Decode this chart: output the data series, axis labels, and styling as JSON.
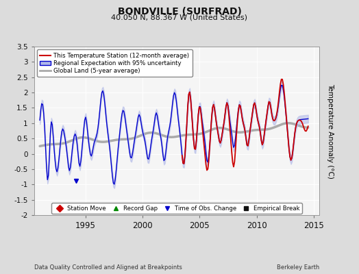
{
  "title": "BONDVILLE (SURFRAD)",
  "subtitle": "40.050 N, 88.367 W (United States)",
  "ylabel": "Temperature Anomaly (°C)",
  "xlabel_note": "Data Quality Controlled and Aligned at Breakpoints",
  "xlabel_note_right": "Berkeley Earth",
  "ylim": [
    -2.0,
    3.5
  ],
  "yticks": [
    -2,
    -1.5,
    -1,
    -0.5,
    0,
    0.5,
    1,
    1.5,
    2,
    2.5,
    3,
    3.5
  ],
  "xlim": [
    1990.5,
    2015.5
  ],
  "xticks": [
    1995,
    2000,
    2005,
    2010,
    2015
  ],
  "bg_color": "#dcdcdc",
  "plot_bg": "#f5f5f5",
  "grid_color": "#ffffff",
  "red_color": "#cc0000",
  "blue_color": "#0000cc",
  "blue_fill": "#b0b8e8",
  "gray_color": "#aaaaaa",
  "legend_entries": [
    "This Temperature Station (12-month average)",
    "Regional Expectation with 95% uncertainty",
    "Global Land (5-year average)"
  ],
  "legend_marker_entries": [
    {
      "label": "Station Move",
      "color": "#cc0000",
      "marker": "D"
    },
    {
      "label": "Record Gap",
      "color": "#008800",
      "marker": "^"
    },
    {
      "label": "Time of Obs. Change",
      "color": "#0000cc",
      "marker": "v"
    },
    {
      "label": "Empirical Break",
      "color": "#111111",
      "marker": "s"
    }
  ],
  "blue_marker_x": 1994.2,
  "blue_marker_y": -0.88
}
